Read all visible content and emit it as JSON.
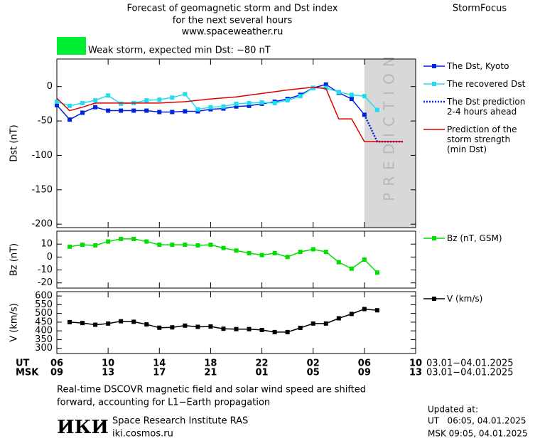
{
  "header": {
    "title_lines": [
      "Forecast of geomagnetic storm and Dst index",
      "for the next several hours",
      "www.spaceweather.ru"
    ],
    "brand": "StormFocus"
  },
  "status": {
    "color": "#00ee33",
    "text": "Weak storm, expected min Dst: −80 nT"
  },
  "chart_data": [
    {
      "type": "line",
      "ylabel": "Dst (nT)",
      "xlim": [
        0,
        28
      ],
      "ylim": [
        -205,
        40
      ],
      "yticks": [
        0,
        -50,
        -100,
        -150,
        -200
      ],
      "prediction_region": {
        "xlim": [
          24,
          28
        ],
        "label": "PREDICTION",
        "color": "#d8d8d8"
      },
      "series": [
        {
          "name": "The Dst, Kyoto",
          "color": "#0022dd",
          "marker": true,
          "x": [
            0,
            1,
            2,
            3,
            4,
            5,
            6,
            7,
            8,
            9,
            10,
            11,
            12,
            13,
            14,
            15,
            16,
            17,
            18,
            19,
            20,
            21,
            22,
            23,
            24
          ],
          "values": [
            -27,
            -48,
            -38,
            -30,
            -35,
            -35,
            -35,
            -35,
            -37,
            -37,
            -36,
            -36,
            -33,
            -32,
            -29,
            -28,
            -25,
            -22,
            -18,
            -12,
            -2,
            3,
            -9,
            -18,
            -41
          ]
        },
        {
          "name": "The recovered Dst",
          "color": "#22ddee",
          "marker": true,
          "x": [
            0,
            1,
            2,
            3,
            4,
            5,
            6,
            7,
            8,
            9,
            10,
            11,
            12,
            13,
            14,
            15,
            16,
            17,
            18,
            19,
            20,
            21,
            22,
            23,
            24,
            25
          ],
          "values": [
            -22,
            -28,
            -24,
            -20,
            -13,
            -25,
            -24,
            -20,
            -19,
            -16,
            -11,
            -33,
            -30,
            -29,
            -25,
            -24,
            -23,
            -24,
            -20,
            -14,
            -2,
            -2,
            -8,
            -12,
            -14,
            -34
          ]
        },
        {
          "name": "The Dst prediction\n2-4 hours ahead",
          "color": "#0022dd",
          "dashed": true,
          "x": [
            24,
            25,
            27
          ],
          "values": [
            -41,
            -80,
            -80
          ]
        },
        {
          "name": "Prediction of the\nstorm strength\n(min Dst)",
          "color": "#dd0000",
          "x": [
            0,
            1,
            2,
            3,
            8,
            10,
            12,
            14,
            16,
            18,
            20,
            21,
            22,
            23,
            24,
            27
          ],
          "values": [
            -17,
            -35,
            -30,
            -24,
            -24,
            -22,
            -18,
            -15,
            -10,
            -5,
            -1,
            -3,
            -47,
            -47,
            -80,
            -80
          ]
        }
      ]
    },
    {
      "type": "line",
      "ylabel": "Bz (nT)",
      "xlim": [
        0,
        28
      ],
      "ylim": [
        -24,
        20
      ],
      "yticks": [
        10,
        0,
        -10,
        -20
      ],
      "series": [
        {
          "name": "Bz (nT, GSM)",
          "color": "#00dd00",
          "marker": true,
          "x": [
            1,
            2,
            3,
            4,
            5,
            6,
            7,
            8,
            9,
            10,
            11,
            12,
            13,
            14,
            15,
            16,
            17,
            18,
            19,
            20,
            21,
            22,
            23,
            24,
            25
          ],
          "values": [
            8,
            9.5,
            9,
            12,
            14,
            14,
            12,
            9.5,
            9.5,
            9.5,
            9,
            9.5,
            7,
            5,
            3,
            1.5,
            3,
            0,
            4,
            6,
            4,
            -4,
            -9,
            -2,
            -12
          ]
        }
      ]
    },
    {
      "type": "line",
      "ylabel": "V (km/s)",
      "xlim": [
        0,
        28
      ],
      "ylim": [
        270,
        625
      ],
      "yticks": [
        300,
        350,
        400,
        450,
        500,
        550,
        600
      ],
      "xticks": [
        {
          "value": 0,
          "label": "06"
        },
        {
          "value": 4,
          "label": "10"
        },
        {
          "value": 8,
          "label": "14"
        },
        {
          "value": 12,
          "label": "18"
        },
        {
          "value": 16,
          "label": "22"
        },
        {
          "value": 20,
          "label": "02"
        },
        {
          "value": 24,
          "label": "06"
        },
        {
          "value": 28,
          "label": "10"
        }
      ],
      "msk_ticks": [
        {
          "value": 0,
          "label": "09"
        },
        {
          "value": 4,
          "label": "13"
        },
        {
          "value": 8,
          "label": "17"
        },
        {
          "value": 12,
          "label": "21"
        },
        {
          "value": 16,
          "label": "01"
        },
        {
          "value": 20,
          "label": "05"
        },
        {
          "value": 24,
          "label": "09"
        },
        {
          "value": 28,
          "label": "13"
        }
      ],
      "ut_label": "UT",
      "msk_label": "MSK",
      "ut_dates": "03.01−04.01.2025",
      "msk_dates": "03.01−04.01.2025",
      "series": [
        {
          "name": "V (km/s)",
          "color": "#000000",
          "marker": true,
          "x": [
            1,
            2,
            3,
            4,
            5,
            6,
            7,
            8,
            9,
            10,
            11,
            12,
            13,
            14,
            15,
            16,
            17,
            18,
            19,
            20,
            21,
            22,
            23,
            24,
            25
          ],
          "values": [
            450,
            445,
            435,
            442,
            455,
            452,
            437,
            418,
            420,
            430,
            423,
            425,
            412,
            410,
            410,
            405,
            393,
            393,
            417,
            442,
            442,
            472,
            497,
            525,
            518
          ]
        }
      ]
    }
  ],
  "footer": {
    "note_lines": [
      "Real-time DSCOVR magnetic field and solar wind speed are shifted",
      "forward, accounting for L1−Earth propagation"
    ],
    "logo": "ИКИ",
    "institute": "Space Research Institute RAS",
    "site": "iki.cosmos.ru",
    "updated_label": "Updated at:",
    "updated_ut": "UT   06:05, 04.01.2025",
    "updated_msk": "MSK 09:05, 04.01.2025"
  }
}
